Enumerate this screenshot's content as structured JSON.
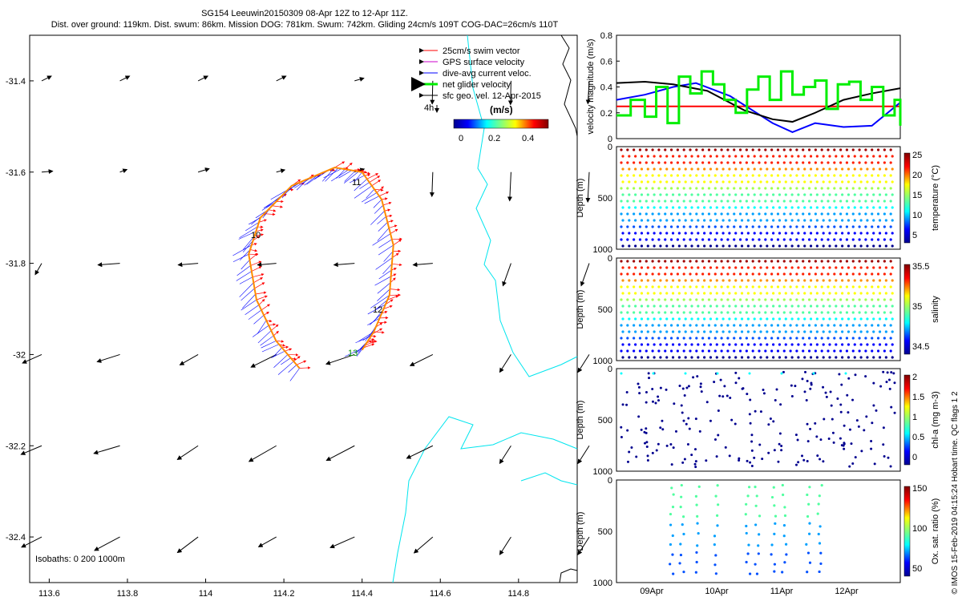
{
  "header": {
    "line1": "SG154 Leeuwin20150309 08-Apr 12Z to 12-Apr 11Z.",
    "line2": "Dist. over ground: 119km. Dist. swum: 86km. Mission DOG: 781km. Swum: 742km. Gliding 24cm/s 109T COG-DAC=26cm/s 110T"
  },
  "credit": "© IMOS 15-Feb-2019 04:15:24 Hobart time. QC flags 1  2",
  "colors": {
    "swim": "#ff0000",
    "gps": "#cc00cc",
    "dac": "#0000ff",
    "net": "#00ee00",
    "sfc": "#000000",
    "coast": "#00e5ee",
    "track": "#ff8c00"
  },
  "chart_data": [
    {
      "type": "map",
      "xlim": [
        113.55,
        114.95
      ],
      "ylim": [
        -32.5,
        -31.3
      ],
      "xticks": [
        113.6,
        113.8,
        114,
        114.2,
        114.4,
        114.6,
        114.8
      ],
      "xtick_labels": [
        "113.6",
        "113.8",
        "114",
        "114.2",
        "114.4",
        "114.6",
        "114.8"
      ],
      "yticks": [
        -31.4,
        -31.6,
        -31.8,
        -32,
        -32.2,
        -32.4
      ],
      "ytick_labels": [
        "-31.4",
        "-31.6",
        "-31.8",
        "-32",
        "-32.2",
        "-32.4"
      ],
      "legend": [
        {
          "label": "25cm/s swim vector",
          "color": "#ff0000"
        },
        {
          "label": "GPS surface velocity",
          "color": "#cc00cc"
        },
        {
          "label": "dive-avg current veloc.",
          "color": "#0000ff"
        },
        {
          "label": "net glider velocity",
          "color": "#00ee00"
        },
        {
          "label": "sfc geo. vel. 12-Apr-2015",
          "color": "#000000"
        }
      ],
      "scale_label": "4h",
      "colorbar": {
        "title": "(m/s)",
        "ticks": [
          "0",
          "0.2",
          "0.4"
        ],
        "range": [
          0,
          0.5
        ]
      },
      "day_labels": [
        "10",
        "11",
        "12",
        "13"
      ],
      "isobaths_label": "Isobaths: 0   200  1000m",
      "glider_track": [
        [
          114.24,
          -32.03
        ],
        [
          114.18,
          -31.97
        ],
        [
          114.13,
          -31.88
        ],
        [
          114.11,
          -31.78
        ],
        [
          114.14,
          -31.7
        ],
        [
          114.22,
          -31.63
        ],
        [
          114.33,
          -31.59
        ],
        [
          114.4,
          -31.6
        ],
        [
          114.45,
          -31.66
        ],
        [
          114.48,
          -31.76
        ],
        [
          114.47,
          -31.87
        ],
        [
          114.43,
          -31.95
        ],
        [
          114.4,
          -31.99
        ]
      ]
    },
    {
      "type": "line",
      "ylabel": "velocity magnitude (m/s)",
      "ylim": [
        0,
        0.8
      ],
      "yticks": [
        "0",
        "0.2",
        "0.4",
        "0.6",
        "0.8"
      ],
      "series": [
        {
          "name": "swim",
          "color": "#ff0000",
          "x": [
            0,
            1
          ],
          "values": [
            0.25,
            0.25
          ]
        },
        {
          "name": "dac",
          "color": "#0000ff",
          "x": [
            0,
            0.1,
            0.2,
            0.28,
            0.4,
            0.55,
            0.62,
            0.7,
            0.8,
            0.9,
            1
          ],
          "values": [
            0.3,
            0.34,
            0.4,
            0.43,
            0.33,
            0.12,
            0.05,
            0.12,
            0.09,
            0.1,
            0.28
          ]
        },
        {
          "name": "sfc",
          "color": "#000000",
          "x": [
            0,
            0.1,
            0.2,
            0.32,
            0.45,
            0.55,
            0.62,
            0.7,
            0.8,
            0.9,
            1
          ],
          "values": [
            0.43,
            0.44,
            0.42,
            0.37,
            0.22,
            0.15,
            0.13,
            0.2,
            0.3,
            0.35,
            0.39
          ]
        },
        {
          "name": "net",
          "color": "#00ee00",
          "x": [
            0,
            0.05,
            0.1,
            0.14,
            0.18,
            0.22,
            0.26,
            0.3,
            0.34,
            0.38,
            0.42,
            0.46,
            0.5,
            0.54,
            0.58,
            0.62,
            0.66,
            0.7,
            0.74,
            0.78,
            0.82,
            0.86,
            0.9,
            0.94,
            0.98,
            1
          ],
          "values": [
            0.18,
            0.3,
            0.17,
            0.4,
            0.12,
            0.48,
            0.35,
            0.52,
            0.42,
            0.3,
            0.2,
            0.38,
            0.48,
            0.3,
            0.52,
            0.34,
            0.4,
            0.45,
            0.23,
            0.42,
            0.44,
            0.3,
            0.4,
            0.18,
            0.3,
            0.1
          ]
        }
      ]
    },
    {
      "type": "scatter",
      "ylabel": "Depth (m)",
      "ylim": [
        1000,
        0
      ],
      "yticks": [
        "0",
        "500",
        "1000"
      ],
      "cbar_label": "temperature (°C)",
      "cbar_ticks": [
        "25",
        "20",
        "15",
        "10",
        "5"
      ],
      "n_profiles": 44
    },
    {
      "type": "scatter",
      "ylabel": "Depth (m)",
      "ylim": [
        1000,
        0
      ],
      "yticks": [
        "0",
        "500",
        "1000"
      ],
      "cbar_label": "salinity",
      "cbar_ticks": [
        "35.5",
        "35",
        "34.5"
      ],
      "n_profiles": 44
    },
    {
      "type": "scatter",
      "ylabel": "Depth (m)",
      "ylim": [
        1000,
        0
      ],
      "yticks": [
        "0",
        "500",
        "1000"
      ],
      "cbar_label": "chl-a (mg m-3)",
      "cbar_ticks": [
        "2",
        "1.5",
        "1",
        "0.5",
        "0"
      ],
      "n_profiles": 44
    },
    {
      "type": "scatter",
      "ylabel": "Depth (m)",
      "ylim": [
        1000,
        0
      ],
      "yticks": [
        "0",
        "500",
        "1000"
      ],
      "cbar_label": "Ox. sat. ratio (%)",
      "cbar_ticks": [
        "150",
        "100",
        "50"
      ],
      "xtick_labels": [
        "09Apr",
        "10Apr",
        "11Apr",
        "12Apr"
      ],
      "n_profiles": 10
    }
  ]
}
